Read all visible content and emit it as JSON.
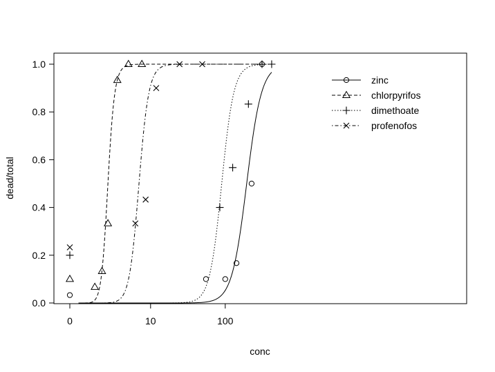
{
  "chart_data": {
    "type": "line",
    "title": "",
    "xlabel": "conc",
    "ylabel": "dead/total",
    "xscale": "log-with-zero",
    "xlim": [
      0,
      400
    ],
    "ylim": [
      0,
      1
    ],
    "x_ticks": [
      {
        "value": 0,
        "label": "0"
      },
      {
        "value": 10,
        "label": "10"
      },
      {
        "value": 100,
        "label": "100"
      }
    ],
    "y_ticks": [
      {
        "value": 0,
        "label": "0.0"
      },
      {
        "value": 0.2,
        "label": "0.2"
      },
      {
        "value": 0.4,
        "label": "0.4"
      },
      {
        "value": 0.6,
        "label": "0.6"
      },
      {
        "value": 0.8,
        "label": "0.8"
      },
      {
        "value": 1,
        "label": "1.0"
      }
    ],
    "grid": false,
    "legend_position": "top-right",
    "series": [
      {
        "name": "zinc",
        "marker": "circle",
        "line_style": "solid",
        "points": [
          {
            "x": 0,
            "y": 0.033
          },
          {
            "x": 56,
            "y": 0.1
          },
          {
            "x": 100,
            "y": 0.1
          },
          {
            "x": 140,
            "y": 0.167
          },
          {
            "x": 220,
            "y": 0.5
          },
          {
            "x": 300,
            "y": 1.0
          }
        ],
        "curve": {
          "ec50": 190,
          "slope": 4.5
        }
      },
      {
        "name": "chlorpyrifos",
        "marker": "triangle",
        "line_style": "dashed",
        "points": [
          {
            "x": 0,
            "y": 0.1
          },
          {
            "x": 1.1,
            "y": 0.067
          },
          {
            "x": 1.6,
            "y": 0.133
          },
          {
            "x": 2.1,
            "y": 0.333
          },
          {
            "x": 3.1,
            "y": 0.933
          },
          {
            "x": 4.7,
            "y": 1.0
          },
          {
            "x": 7.5,
            "y": 1.0
          }
        ],
        "curve": {
          "ec50": 2.1,
          "slope": 6.8
        }
      },
      {
        "name": "dimethoate",
        "marker": "plus",
        "line_style": "dotted",
        "points": [
          {
            "x": 0,
            "y": 0.2
          },
          {
            "x": 85,
            "y": 0.4
          },
          {
            "x": 125,
            "y": 0.567
          },
          {
            "x": 200,
            "y": 0.833
          },
          {
            "x": 300,
            "y": 1.0
          },
          {
            "x": 400,
            "y": 1.0
          }
        ],
        "curve": {
          "ec50": 90,
          "slope": 5.5
        }
      },
      {
        "name": "profenofos",
        "marker": "cross",
        "line_style": "dotdash",
        "points": [
          {
            "x": 0,
            "y": 0.233
          },
          {
            "x": 6,
            "y": 0.333
          },
          {
            "x": 8.5,
            "y": 0.433
          },
          {
            "x": 12,
            "y": 0.9
          },
          {
            "x": 25,
            "y": 1.0
          },
          {
            "x": 50,
            "y": 1.0
          }
        ],
        "curve": {
          "ec50": 6.8,
          "slope": 6.0
        }
      }
    ]
  }
}
